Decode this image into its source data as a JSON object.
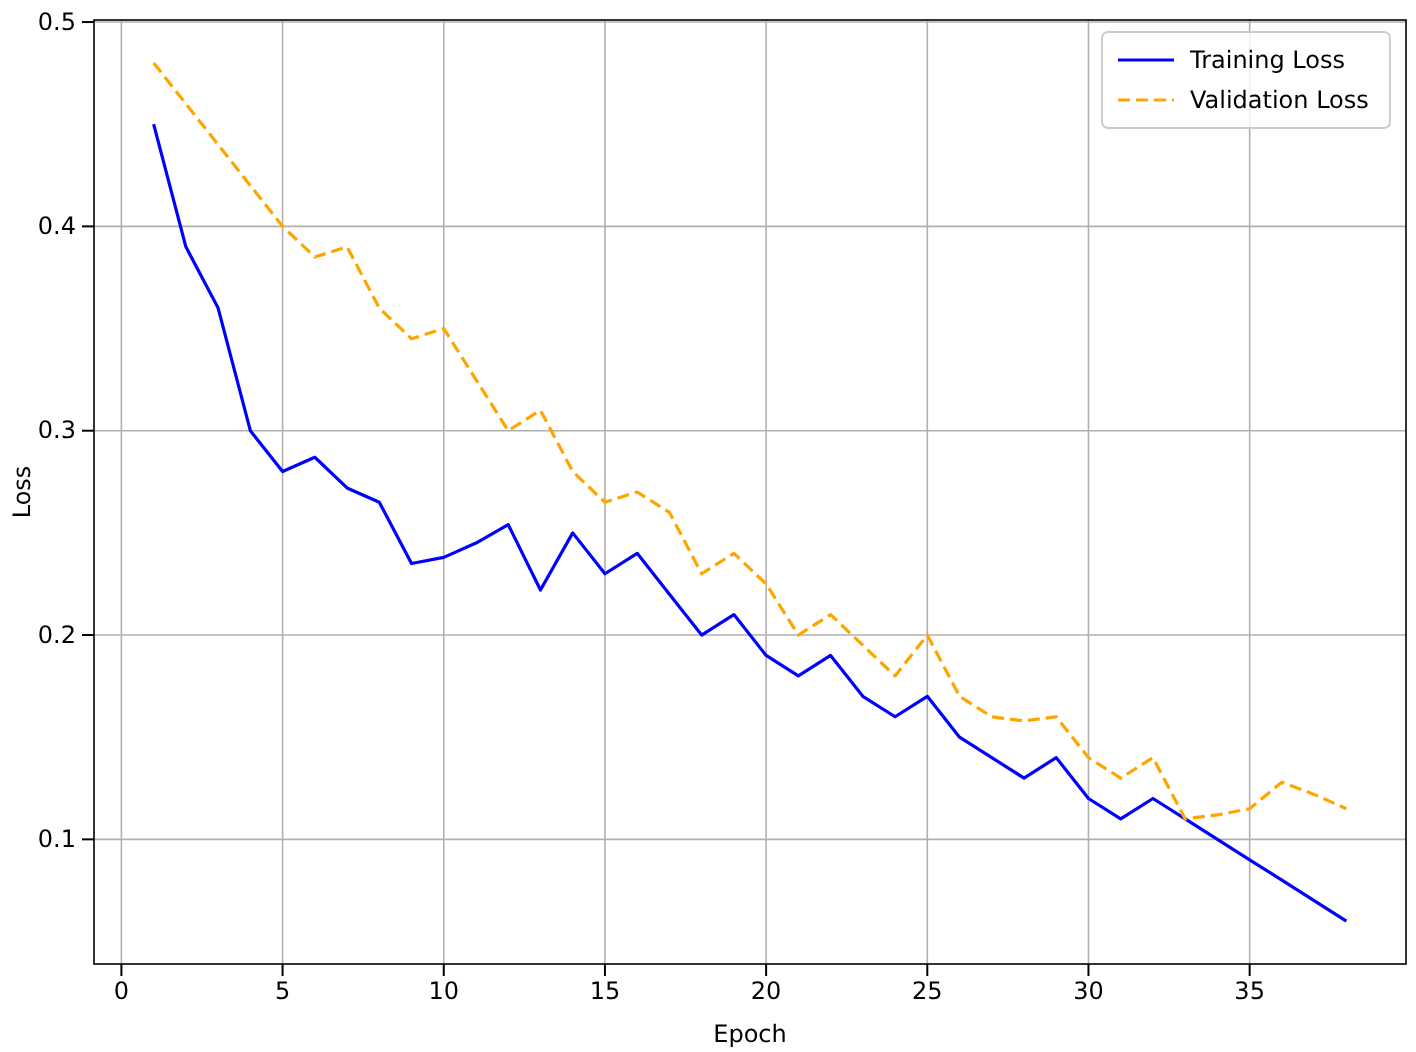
{
  "chart_data": {
    "type": "line",
    "xlabel": "Epoch",
    "ylabel": "Loss",
    "x": [
      1,
      2,
      3,
      4,
      5,
      6,
      7,
      8,
      9,
      10,
      11,
      12,
      13,
      14,
      15,
      16,
      17,
      18,
      19,
      20,
      21,
      22,
      23,
      24,
      25,
      26,
      27,
      28,
      29,
      30,
      31,
      32,
      33,
      34,
      35,
      36,
      37,
      38
    ],
    "series": [
      {
        "name": "Training Loss",
        "color": "#0000ff",
        "line_style": "solid",
        "values": [
          0.45,
          0.39,
          0.36,
          0.3,
          0.28,
          0.287,
          0.272,
          0.265,
          0.235,
          0.238,
          0.245,
          0.254,
          0.222,
          0.25,
          0.23,
          0.24,
          0.22,
          0.2,
          0.21,
          0.19,
          0.18,
          0.19,
          0.17,
          0.16,
          0.17,
          0.15,
          0.14,
          0.13,
          0.14,
          0.12,
          0.11,
          0.12,
          0.11,
          0.1,
          0.09,
          0.08,
          0.07,
          0.06
        ]
      },
      {
        "name": "Validation Loss",
        "color": "#ffa500",
        "line_style": "dashed",
        "values": [
          0.48,
          0.46,
          0.44,
          0.42,
          0.4,
          0.385,
          0.39,
          0.36,
          0.345,
          0.35,
          0.325,
          0.3,
          0.31,
          0.28,
          0.265,
          0.27,
          0.26,
          0.23,
          0.24,
          0.225,
          0.2,
          0.21,
          0.195,
          0.18,
          0.2,
          0.17,
          0.16,
          0.158,
          0.16,
          0.14,
          0.13,
          0.14,
          0.11,
          0.112,
          0.115,
          0.128,
          0.122,
          0.115
        ]
      }
    ],
    "xlim": [
      -0.85,
      39.85
    ],
    "xticks": [
      0,
      5,
      10,
      15,
      20,
      25,
      30,
      35
    ],
    "ylim": [
      0.039,
      0.501
    ],
    "yticks": [
      0.1,
      0.2,
      0.3,
      0.4,
      0.5
    ],
    "grid": true,
    "legend": "top right"
  }
}
